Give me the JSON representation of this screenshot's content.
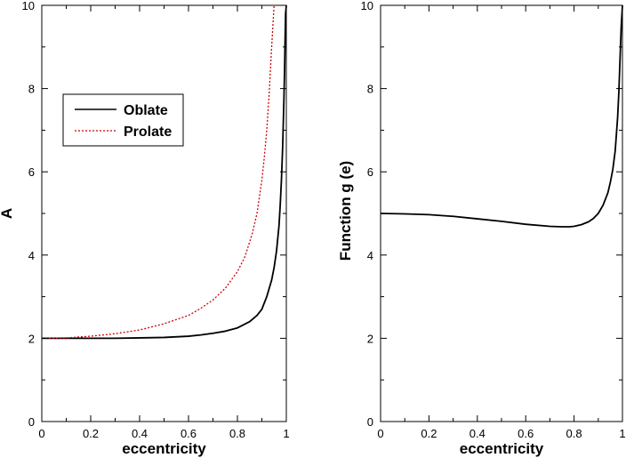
{
  "chart_data": [
    {
      "type": "line",
      "xlabel": "eccentricity",
      "ylabel": "A",
      "xlim": [
        0,
        1
      ],
      "ylim": [
        0,
        10
      ],
      "x_ticks": [
        "0",
        "0.2",
        "0.4",
        "0.6",
        "0.8",
        "1"
      ],
      "y_ticks": [
        "0",
        "2",
        "4",
        "6",
        "8",
        "10"
      ],
      "grid": false,
      "legend": "upper-left",
      "series": [
        {
          "name": "Oblate",
          "color": "#000000",
          "style": "solid",
          "x": [
            0,
            0.1,
            0.2,
            0.3,
            0.4,
            0.5,
            0.6,
            0.65,
            0.7,
            0.75,
            0.8,
            0.85,
            0.88,
            0.9,
            0.92,
            0.94,
            0.95,
            0.96,
            0.97,
            0.975,
            0.98,
            0.985,
            0.99,
            0.993,
            0.995,
            0.997,
            1.0
          ],
          "y": [
            2.0,
            2.0,
            2.0,
            2.0,
            2.01,
            2.02,
            2.05,
            2.08,
            2.12,
            2.17,
            2.25,
            2.4,
            2.55,
            2.7,
            3.0,
            3.4,
            3.7,
            4.1,
            4.7,
            5.2,
            5.8,
            6.6,
            7.7,
            8.5,
            9.2,
            9.8,
            10.0
          ]
        },
        {
          "name": "Prolate",
          "color": "#cc0000",
          "style": "dotted",
          "x": [
            0,
            0.1,
            0.2,
            0.3,
            0.4,
            0.5,
            0.6,
            0.65,
            0.7,
            0.75,
            0.8,
            0.83,
            0.86,
            0.88,
            0.9,
            0.91,
            0.92,
            0.93,
            0.94,
            0.95
          ],
          "y": [
            2.0,
            2.01,
            2.05,
            2.11,
            2.2,
            2.35,
            2.55,
            2.72,
            2.92,
            3.2,
            3.6,
            3.95,
            4.5,
            5.0,
            5.8,
            6.35,
            7.0,
            7.9,
            9.0,
            10.0
          ]
        }
      ]
    },
    {
      "type": "line",
      "xlabel": "eccentricity",
      "ylabel": "Function g (e)",
      "xlim": [
        0,
        1
      ],
      "ylim": [
        0,
        10
      ],
      "x_ticks": [
        "0",
        "0.2",
        "0.4",
        "0.6",
        "0.8",
        "1"
      ],
      "y_ticks": [
        "0",
        "2",
        "4",
        "6",
        "8",
        "10"
      ],
      "grid": false,
      "series": [
        {
          "color": "#000000",
          "style": "solid",
          "x": [
            0,
            0.1,
            0.2,
            0.3,
            0.4,
            0.5,
            0.6,
            0.7,
            0.75,
            0.78,
            0.8,
            0.83,
            0.86,
            0.88,
            0.9,
            0.92,
            0.94,
            0.95,
            0.96,
            0.97,
            0.98,
            0.985,
            0.99,
            0.995,
            1.0
          ],
          "y": [
            5.0,
            4.99,
            4.97,
            4.93,
            4.87,
            4.81,
            4.74,
            4.69,
            4.68,
            4.68,
            4.69,
            4.73,
            4.8,
            4.88,
            5.0,
            5.2,
            5.5,
            5.75,
            6.05,
            6.5,
            7.3,
            7.9,
            8.7,
            9.5,
            10.0
          ]
        }
      ]
    }
  ]
}
